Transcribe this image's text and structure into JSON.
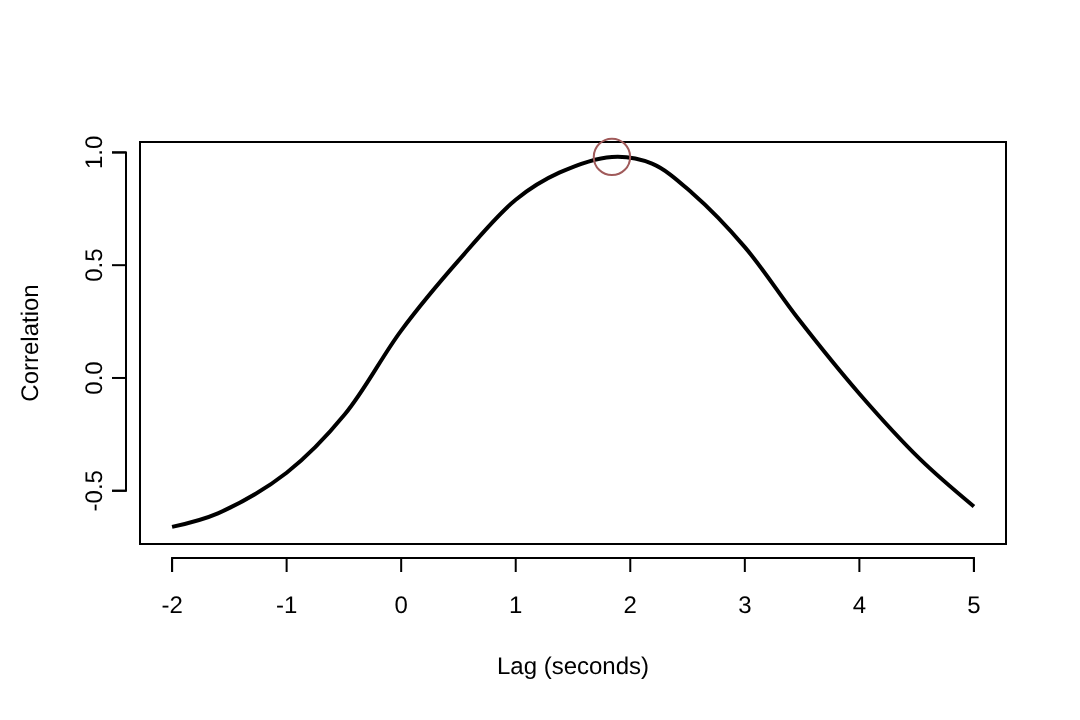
{
  "chart_data": {
    "type": "line",
    "xlabel": "Lag (seconds)",
    "ylabel": "Correlation",
    "xlim": [
      -2.28,
      5.28
    ],
    "ylim": [
      -0.736,
      1.046
    ],
    "xticks": [
      -2,
      -1,
      0,
      1,
      2,
      3,
      4,
      5
    ],
    "yticks": [
      {
        "value": -0.5,
        "label": "-0.5"
      },
      {
        "value": 0,
        "label": "0.0"
      },
      {
        "value": 0.5,
        "label": "0.5"
      },
      {
        "value": 1,
        "label": "1.0"
      }
    ],
    "grid": false,
    "line_style": "solid",
    "series": [
      {
        "color": "#000000",
        "marker": "none",
        "x": [
          -2.0,
          -1.6,
          -1.0,
          -0.49,
          0.0,
          0.5,
          1.0,
          1.38,
          1.84,
          2.19,
          2.54,
          3.0,
          3.47,
          4.0,
          4.53,
          5.0
        ],
        "values": [
          -0.66,
          -0.6,
          -0.42,
          -0.16,
          0.21,
          0.52,
          0.79,
          0.91,
          0.98,
          0.95,
          0.82,
          0.58,
          0.26,
          -0.07,
          -0.36,
          -0.57
        ]
      },
      {
        "type": "scatter",
        "color": "#a05a5a",
        "marker": "circle",
        "x": [
          1.84
        ],
        "values": [
          0.98
        ]
      }
    ]
  }
}
